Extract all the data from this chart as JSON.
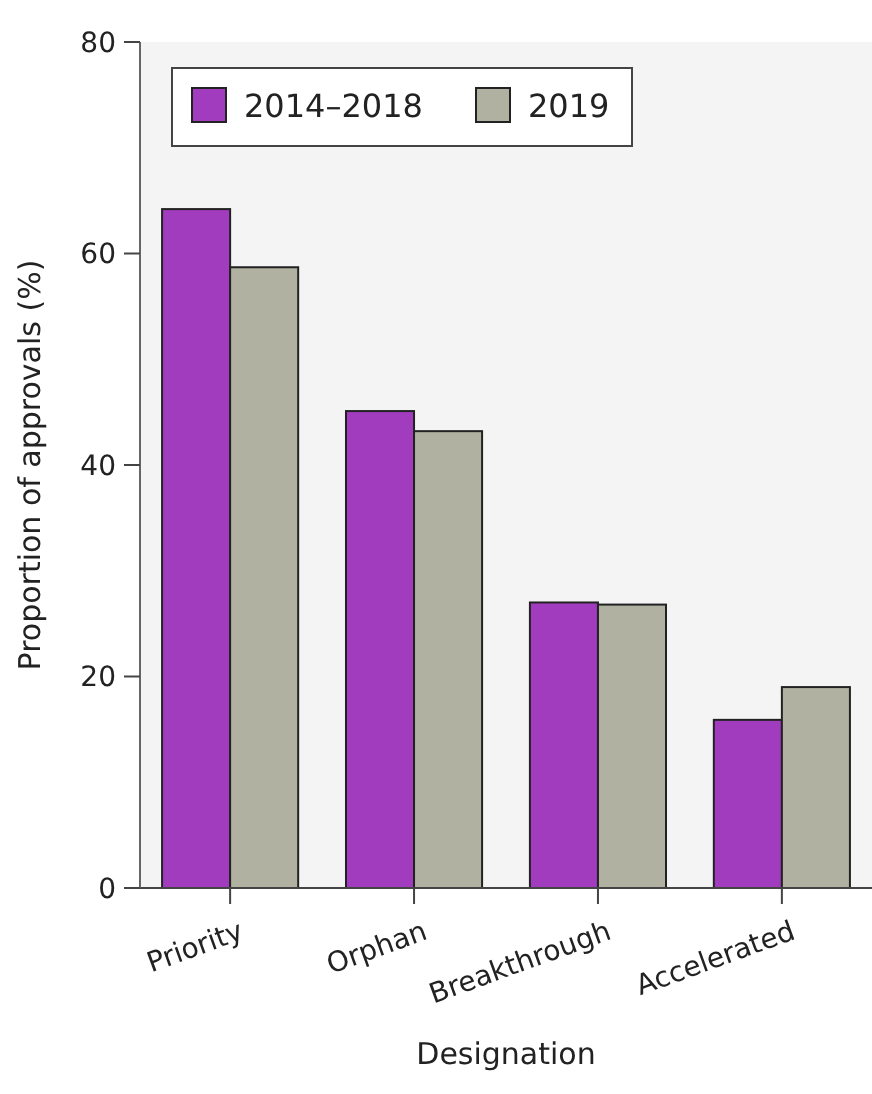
{
  "chart_data": {
    "type": "bar",
    "xlabel": "Designation",
    "ylabel": "Proportion of approvals (%)",
    "categories": [
      "Priority",
      "Orphan",
      "Breakthrough",
      "Accelerated"
    ],
    "series": [
      {
        "name": "2014–2018",
        "color": "#a23cbf",
        "values": [
          64.2,
          45.1,
          27.0,
          15.9
        ]
      },
      {
        "name": "2019",
        "color": "#b0b1a1",
        "values": [
          58.7,
          43.2,
          26.8,
          19.0
        ]
      }
    ],
    "ylim": [
      0,
      80
    ],
    "yticks": [
      0,
      20,
      40,
      60,
      80
    ],
    "legend": "top left"
  }
}
